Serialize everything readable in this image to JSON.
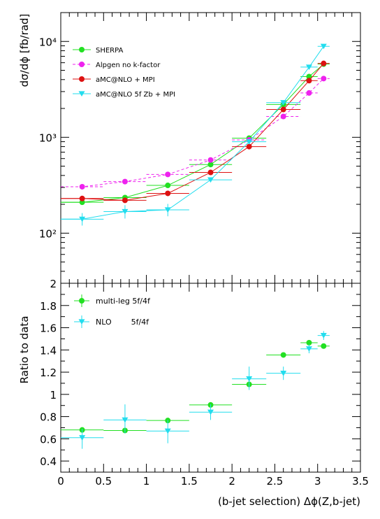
{
  "chart_data": [
    {
      "type": "scatter",
      "panel": "top",
      "ylabel": "dσ/dϕ [fb/rad]",
      "yscale": "log",
      "ylim": [
        30,
        20000
      ],
      "xlim": [
        0,
        3.5
      ],
      "ytick_labels": [
        "10²",
        "10³",
        "10⁴"
      ],
      "ytick_values": [
        100,
        1000,
        10000
      ],
      "legend_position": "top-left",
      "grid": false,
      "series": [
        {
          "name": "SHERPA",
          "color": "#22e022",
          "style": "solid",
          "marker": "circle",
          "points": [
            {
              "x": 0.25,
              "xlo": 0.0,
              "xhi": 0.5,
              "y": 210
            },
            {
              "x": 0.75,
              "xlo": 0.5,
              "xhi": 1.0,
              "y": 235
            },
            {
              "x": 1.25,
              "xlo": 1.0,
              "xhi": 1.5,
              "y": 315
            },
            {
              "x": 1.75,
              "xlo": 1.5,
              "xhi": 2.0,
              "y": 520
            },
            {
              "x": 2.2,
              "xlo": 2.0,
              "xhi": 2.4,
              "y": 980
            },
            {
              "x": 2.6,
              "xlo": 2.4,
              "xhi": 2.8,
              "y": 2200
            },
            {
              "x": 2.9,
              "xlo": 2.8,
              "xhi": 3.0,
              "y": 4300
            },
            {
              "x": 3.07,
              "xlo": 3.0,
              "xhi": 3.14,
              "y": 5800
            }
          ]
        },
        {
          "name": "Alpgen no k-factor",
          "color": "#ee22ee",
          "style": "dashed",
          "marker": "circle",
          "points": [
            {
              "x": 0.25,
              "xlo": 0.0,
              "xhi": 0.5,
              "y": 305
            },
            {
              "x": 0.75,
              "xlo": 0.5,
              "xhi": 1.0,
              "y": 345
            },
            {
              "x": 1.25,
              "xlo": 1.0,
              "xhi": 1.5,
              "y": 410
            },
            {
              "x": 1.75,
              "xlo": 1.5,
              "xhi": 2.0,
              "y": 580
            },
            {
              "x": 2.2,
              "xlo": 2.0,
              "xhi": 2.4,
              "y": 940
            },
            {
              "x": 2.6,
              "xlo": 2.4,
              "xhi": 2.8,
              "y": 1650
            },
            {
              "x": 2.9,
              "xlo": 2.8,
              "xhi": 3.0,
              "y": 2900
            },
            {
              "x": 3.07,
              "xlo": 3.0,
              "xhi": 3.14,
              "y": 4100
            }
          ]
        },
        {
          "name": "aMC@NLO + MPI",
          "color": "#dd1111",
          "style": "solid",
          "marker": "circle",
          "points": [
            {
              "x": 0.25,
              "xlo": 0.0,
              "xhi": 0.5,
              "y": 230
            },
            {
              "x": 0.75,
              "xlo": 0.5,
              "xhi": 1.0,
              "y": 220
            },
            {
              "x": 1.25,
              "xlo": 1.0,
              "xhi": 1.5,
              "y": 260
            },
            {
              "x": 1.75,
              "xlo": 1.5,
              "xhi": 2.0,
              "y": 430
            },
            {
              "x": 2.2,
              "xlo": 2.0,
              "xhi": 2.4,
              "y": 800
            },
            {
              "x": 2.6,
              "xlo": 2.4,
              "xhi": 2.8,
              "y": 1950
            },
            {
              "x": 2.9,
              "xlo": 2.8,
              "xhi": 3.0,
              "y": 3900
            },
            {
              "x": 3.07,
              "xlo": 3.0,
              "xhi": 3.14,
              "y": 5900
            }
          ]
        },
        {
          "name": "aMC@NLO 5f Zb + MPI",
          "color": "#22ddee",
          "style": "solid",
          "marker": "triangle-down",
          "points": [
            {
              "x": 0.25,
              "xlo": 0.0,
              "xhi": 0.5,
              "y": 140,
              "ylo": 120,
              "yhi": 162
            },
            {
              "x": 0.75,
              "xlo": 0.5,
              "xhi": 1.0,
              "y": 168,
              "ylo": 142,
              "yhi": 196
            },
            {
              "x": 1.25,
              "xlo": 1.0,
              "xhi": 1.5,
              "y": 175,
              "ylo": 150,
              "yhi": 202
            },
            {
              "x": 1.75,
              "xlo": 1.5,
              "xhi": 2.0,
              "y": 360
            },
            {
              "x": 2.2,
              "xlo": 2.0,
              "xhi": 2.4,
              "y": 900
            },
            {
              "x": 2.6,
              "xlo": 2.4,
              "xhi": 2.8,
              "y": 2300
            },
            {
              "x": 2.9,
              "xlo": 2.8,
              "xhi": 3.0,
              "y": 5400
            },
            {
              "x": 3.07,
              "xlo": 3.0,
              "xhi": 3.14,
              "y": 8900
            }
          ]
        }
      ]
    },
    {
      "type": "scatter",
      "panel": "bottom",
      "ylabel": "Ratio to data",
      "xlabel": "(b-jet selection)  Δϕ(Z,b-jet)",
      "ylim": [
        0.3,
        2.0
      ],
      "xlim": [
        0,
        3.5
      ],
      "xtick_labels": [
        "0",
        "0.5",
        "1",
        "1.5",
        "2",
        "2.5",
        "3",
        "3.5"
      ],
      "ytick_labels": [
        "0.4",
        "0.6",
        "0.8",
        "1",
        "1.2",
        "1.4",
        "1.6",
        "1.8",
        "2"
      ],
      "legend_position": "top-left",
      "grid": false,
      "series": [
        {
          "name": "multi-leg 5f/4f",
          "color": "#22e022",
          "marker": "circle",
          "points": [
            {
              "x": 0.25,
              "xlo": 0.0,
              "xhi": 0.5,
              "y": 0.68,
              "ylo": 0.67,
              "yhi": 0.69
            },
            {
              "x": 0.75,
              "xlo": 0.5,
              "xhi": 1.0,
              "y": 0.675,
              "ylo": 0.665,
              "yhi": 0.685
            },
            {
              "x": 1.25,
              "xlo": 1.0,
              "xhi": 1.5,
              "y": 0.765,
              "ylo": 0.755,
              "yhi": 0.775
            },
            {
              "x": 1.75,
              "xlo": 1.5,
              "xhi": 2.0,
              "y": 0.905,
              "ylo": 0.895,
              "yhi": 0.915
            },
            {
              "x": 2.2,
              "xlo": 2.0,
              "xhi": 2.4,
              "y": 1.09,
              "ylo": 1.07,
              "yhi": 1.11
            },
            {
              "x": 2.6,
              "xlo": 2.4,
              "xhi": 2.8,
              "y": 1.355,
              "ylo": 1.345,
              "yhi": 1.365
            },
            {
              "x": 2.9,
              "xlo": 2.8,
              "xhi": 3.0,
              "y": 1.465,
              "ylo": 1.455,
              "yhi": 1.475
            },
            {
              "x": 3.07,
              "xlo": 3.0,
              "xhi": 3.14,
              "y": 1.435,
              "ylo": 1.42,
              "yhi": 1.45
            }
          ]
        },
        {
          "name": "NLO        5f/4f",
          "color": "#22ddee",
          "marker": "triangle-down",
          "points": [
            {
              "x": 0.25,
              "xlo": 0.0,
              "xhi": 0.5,
              "y": 0.61,
              "ylo": 0.51,
              "yhi": 0.69
            },
            {
              "x": 0.75,
              "xlo": 0.5,
              "xhi": 1.0,
              "y": 0.77,
              "ylo": 0.65,
              "yhi": 0.91
            },
            {
              "x": 1.25,
              "xlo": 1.0,
              "xhi": 1.5,
              "y": 0.67,
              "ylo": 0.56,
              "yhi": 0.77
            },
            {
              "x": 1.75,
              "xlo": 1.5,
              "xhi": 2.0,
              "y": 0.84,
              "ylo": 0.77,
              "yhi": 0.91
            },
            {
              "x": 2.2,
              "xlo": 2.0,
              "xhi": 2.4,
              "y": 1.14,
              "ylo": 1.04,
              "yhi": 1.25
            },
            {
              "x": 2.6,
              "xlo": 2.4,
              "xhi": 2.8,
              "y": 1.19,
              "ylo": 1.13,
              "yhi": 1.25
            },
            {
              "x": 2.9,
              "xlo": 2.8,
              "xhi": 3.0,
              "y": 1.41,
              "ylo": 1.37,
              "yhi": 1.45
            },
            {
              "x": 3.07,
              "xlo": 3.0,
              "xhi": 3.14,
              "y": 1.53,
              "ylo": 1.49,
              "yhi": 1.57
            }
          ]
        }
      ]
    }
  ]
}
